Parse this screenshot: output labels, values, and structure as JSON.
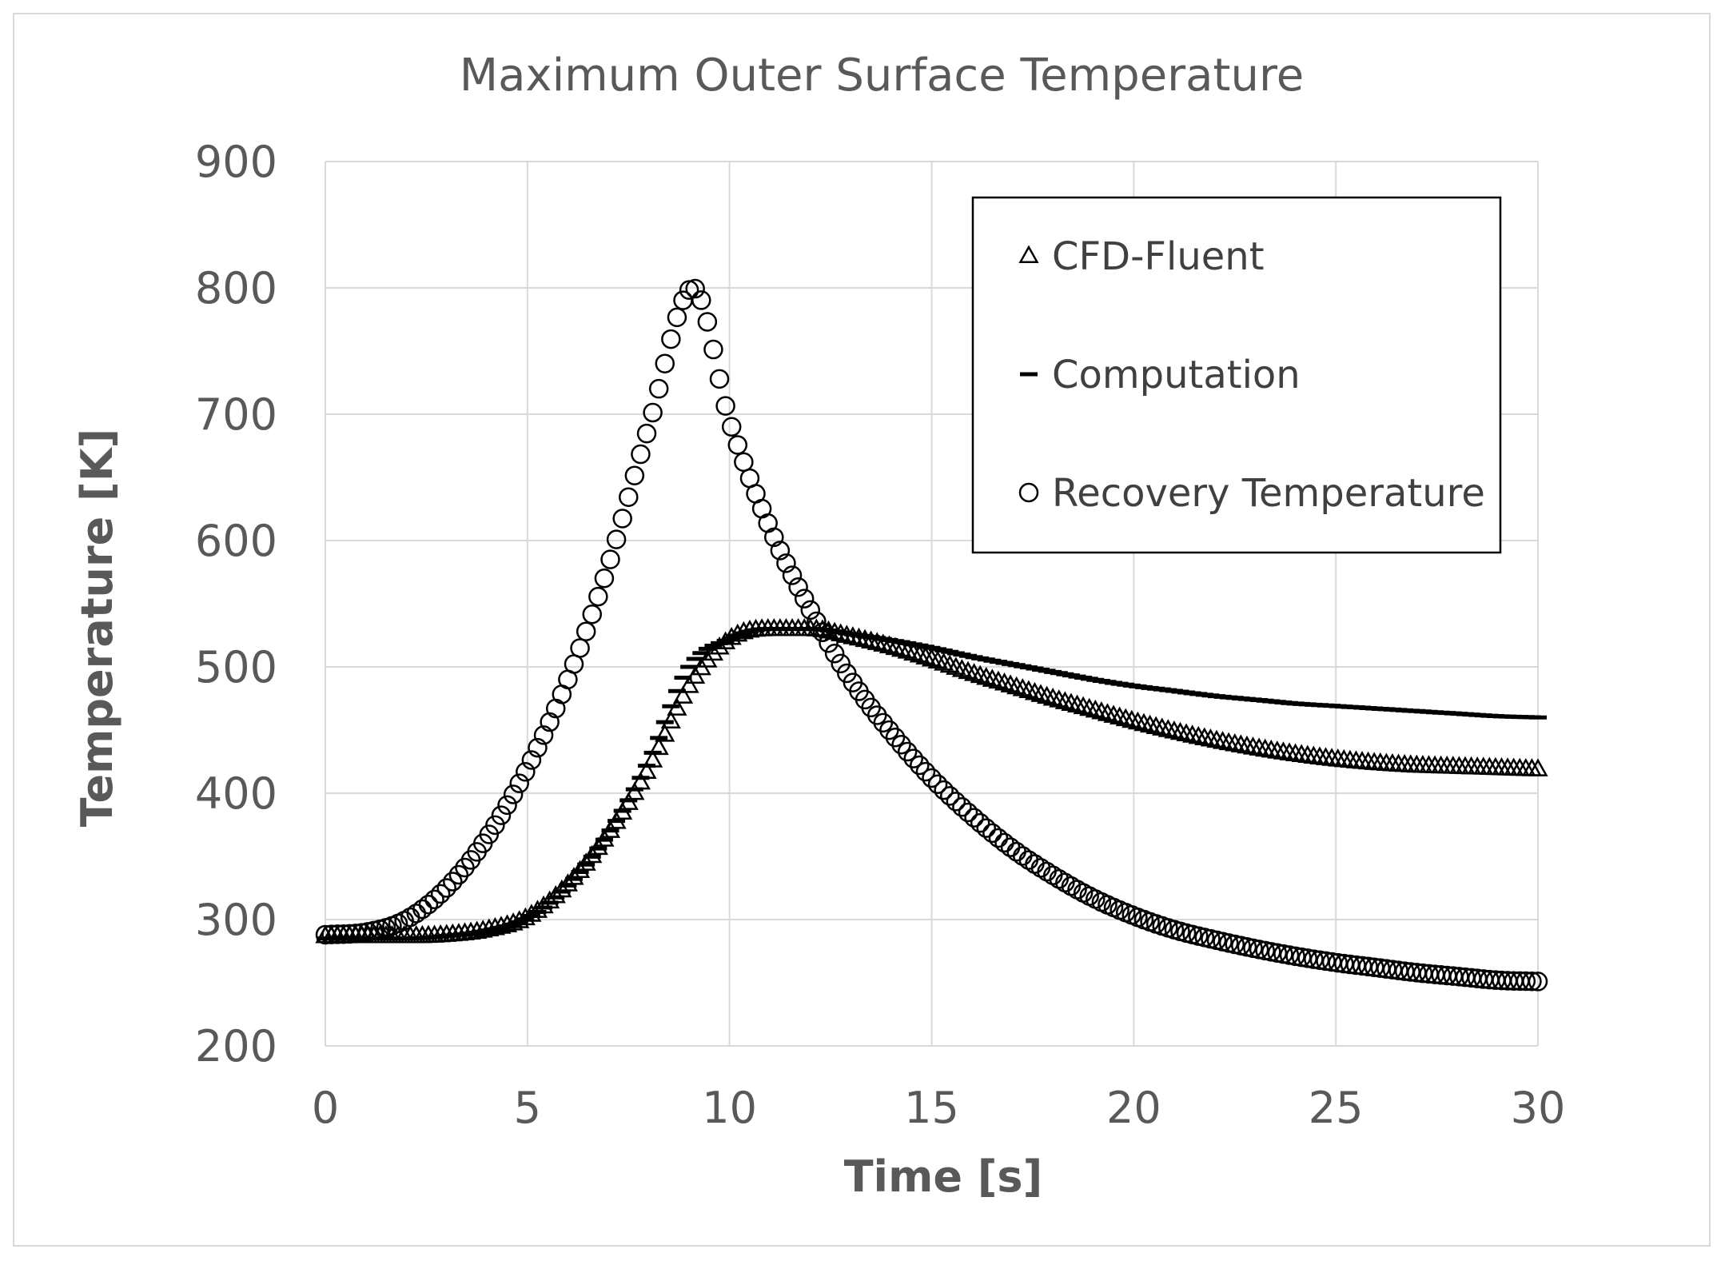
{
  "chart_data": {
    "type": "scatter",
    "title": "Maximum Outer Surface Temperature",
    "xlabel": "Time [s]",
    "ylabel": "Temperature [K]",
    "xlim": [
      0,
      30
    ],
    "ylim": [
      200,
      900
    ],
    "xticks": [
      0,
      5,
      10,
      15,
      20,
      25,
      30
    ],
    "yticks": [
      200,
      300,
      400,
      500,
      600,
      700,
      800,
      900
    ],
    "grid": true,
    "legend_position": "top-right",
    "series": [
      {
        "name": "CFD-Fluent",
        "marker": "triangle",
        "x": [
          0,
          1,
          2,
          3,
          4,
          5,
          6,
          7,
          8,
          9,
          10,
          11,
          12,
          13,
          14,
          15,
          16,
          17,
          18,
          19,
          20,
          21,
          22,
          23,
          24,
          25,
          26,
          27,
          28,
          29,
          30
        ],
        "values": [
          287,
          287,
          287,
          288,
          292,
          302,
          328,
          368,
          420,
          485,
          522,
          530,
          530,
          524,
          516,
          506,
          495,
          485,
          475,
          466,
          457,
          449,
          442,
          436,
          431,
          427,
          424,
          422,
          421,
          420,
          419
        ]
      },
      {
        "name": "Computation",
        "marker": "dash",
        "x": [
          0,
          1,
          2,
          3,
          4,
          5,
          6,
          7,
          8,
          9,
          10,
          11,
          12,
          13,
          14,
          15,
          16,
          17,
          18,
          19,
          20,
          21,
          22,
          23,
          24,
          25,
          26,
          27,
          28,
          29,
          30
        ],
        "values": [
          285,
          285,
          285,
          287,
          291,
          301,
          327,
          368,
          425,
          500,
          522,
          530,
          530,
          526,
          521,
          515,
          508,
          502,
          496,
          490,
          485,
          481,
          477,
          474,
          471,
          469,
          467,
          465,
          463,
          461,
          460
        ]
      },
      {
        "name": "Recovery Temperature",
        "marker": "circle",
        "x": [
          0,
          1,
          2,
          3,
          4,
          5,
          6,
          7,
          8,
          9.1,
          10,
          11,
          12,
          13,
          14,
          15,
          16,
          17,
          18,
          19,
          20,
          21,
          22,
          23,
          24,
          25,
          26,
          27,
          28,
          29,
          30
        ],
        "values": [
          288,
          290,
          300,
          325,
          365,
          420,
          490,
          580,
          690,
          800,
          695,
          610,
          545,
          490,
          448,
          412,
          382,
          356,
          335,
          317,
          303,
          292,
          284,
          277,
          271,
          266,
          262,
          258,
          255,
          252,
          251
        ]
      }
    ]
  }
}
